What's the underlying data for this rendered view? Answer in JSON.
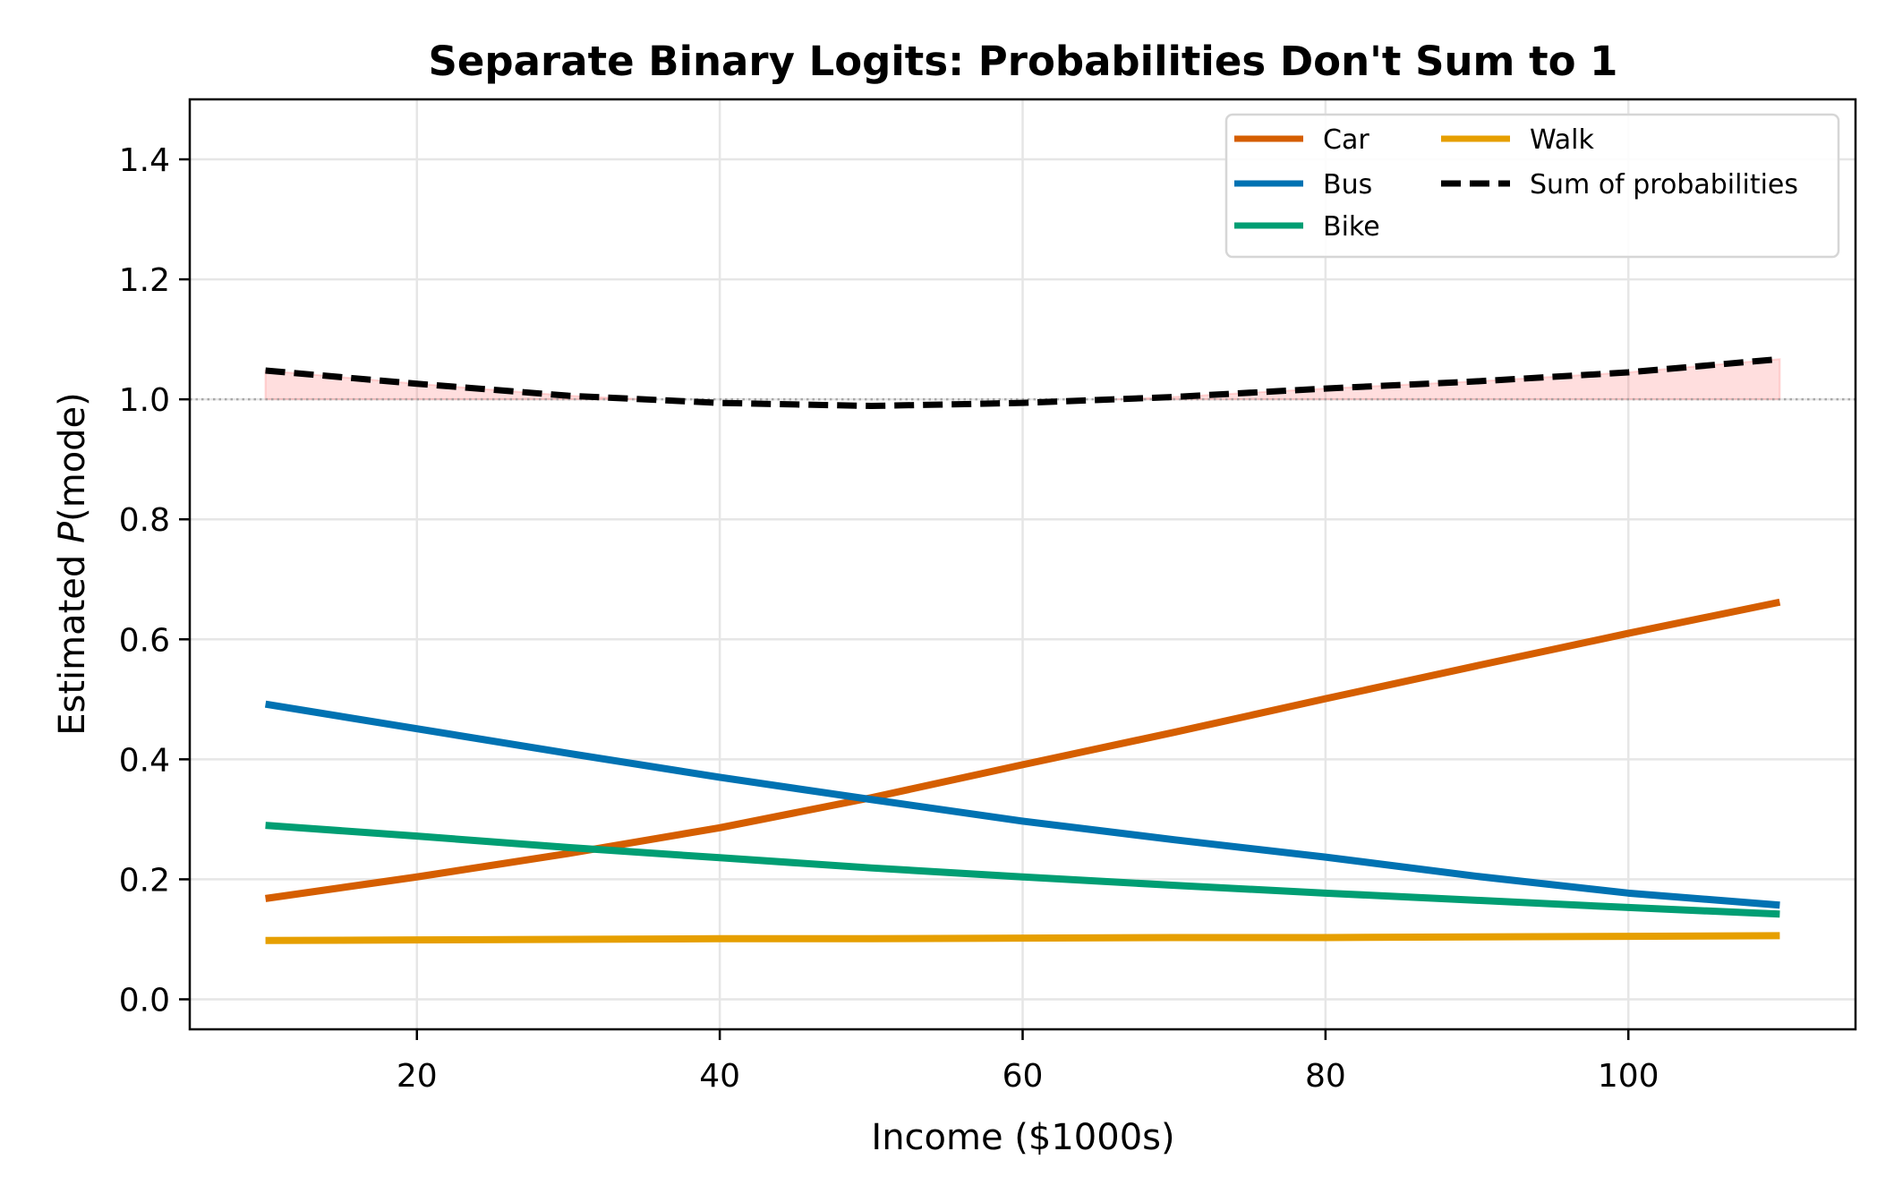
{
  "chart_data": {
    "type": "line",
    "title": "Separate Binary Logits: Probabilities Don't Sum to 1",
    "xlabel": "Income ($1000s)",
    "ylabel_prefix": "Estimated ",
    "ylabel_italic": "P",
    "ylabel_suffix": "(mode)",
    "xlim": [
      5,
      115
    ],
    "ylim": [
      -0.05,
      1.5
    ],
    "xticks": [
      20,
      40,
      60,
      80,
      100
    ],
    "xtick_labels": [
      "20",
      "40",
      "60",
      "80",
      "100"
    ],
    "yticks": [
      0.0,
      0.2,
      0.4,
      0.6,
      0.8,
      1.0,
      1.2,
      1.4
    ],
    "ytick_labels": [
      "0.0",
      "0.2",
      "0.4",
      "0.6",
      "0.8",
      "1.0",
      "1.2",
      "1.4"
    ],
    "grid": true,
    "reference_line": {
      "y": 1.0,
      "style": "dotted",
      "color": "#999999"
    },
    "x": [
      10,
      20,
      30,
      40,
      50,
      60,
      70,
      80,
      90,
      100,
      110
    ],
    "series": [
      {
        "name": "Car",
        "color": "#D55E00",
        "style": "solid",
        "values": [
          0.168,
          0.204,
          0.243,
          0.286,
          0.336,
          0.391,
          0.445,
          0.501,
          0.556,
          0.61,
          0.662
        ]
      },
      {
        "name": "Bus",
        "color": "#0072B2",
        "style": "solid",
        "values": [
          0.492,
          0.451,
          0.41,
          0.37,
          0.333,
          0.297,
          0.266,
          0.237,
          0.205,
          0.177,
          0.157
        ]
      },
      {
        "name": "Bike",
        "color": "#009E73",
        "style": "solid",
        "values": [
          0.29,
          0.272,
          0.253,
          0.236,
          0.219,
          0.204,
          0.19,
          0.177,
          0.165,
          0.153,
          0.142
        ]
      },
      {
        "name": "Walk",
        "color": "#E69F00",
        "style": "solid",
        "values": [
          0.098,
          0.099,
          0.1,
          0.101,
          0.101,
          0.102,
          0.103,
          0.103,
          0.104,
          0.105,
          0.106
        ]
      },
      {
        "name": "Sum of probabilities",
        "color": "#000000",
        "style": "dashed",
        "values": [
          1.048,
          1.026,
          1.006,
          0.994,
          0.989,
          0.994,
          1.004,
          1.018,
          1.03,
          1.045,
          1.067
        ]
      }
    ],
    "fill_between": {
      "series": "Sum of probabilities",
      "baseline": 1.0,
      "where": "above",
      "color": "#FF6B6B",
      "opacity": 0.22
    },
    "legend": {
      "placement": "top-right",
      "columns": 2,
      "entries": [
        "Car",
        "Bus",
        "Bike",
        "Walk",
        "Sum of probabilities"
      ]
    }
  }
}
